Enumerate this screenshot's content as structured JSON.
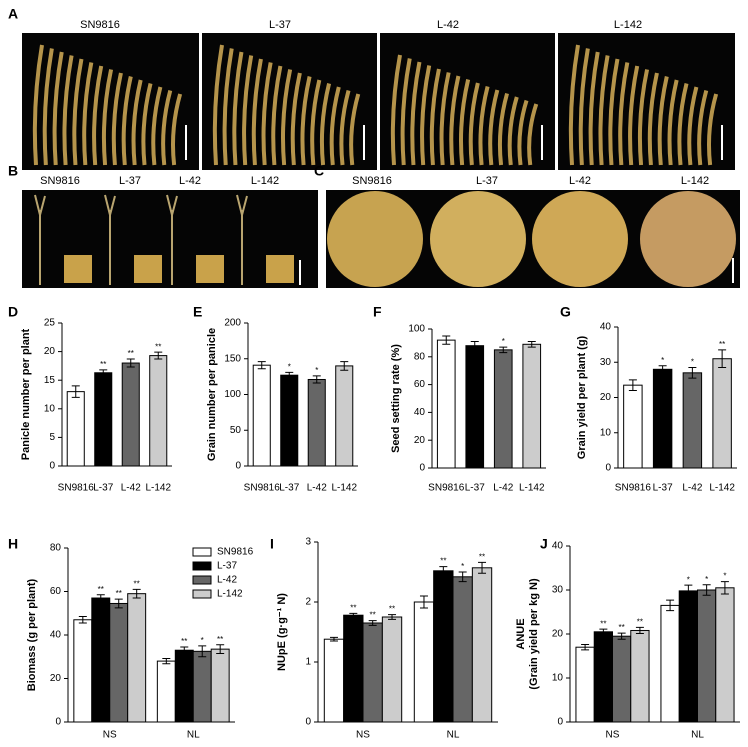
{
  "photo_panels": [
    {
      "panel": "A",
      "labels": [
        "SN9816",
        "L-37",
        "L-42",
        "L-142"
      ]
    },
    {
      "panel": "B",
      "labels": [
        "SN9816",
        "L-37",
        "L-42",
        "L-142"
      ]
    },
    {
      "panel": "C",
      "labels": [
        "SN9816",
        "L-37",
        "L-42",
        "L-142"
      ]
    }
  ],
  "chart_data": [
    {
      "type": "bar",
      "panel": "D",
      "ylabel": [
        "Panicle number per plant"
      ],
      "categories": [
        "SN9816",
        "L-37",
        "L-42",
        "L-142"
      ],
      "values": [
        13,
        16.3,
        18,
        19.3
      ],
      "errors": [
        1,
        0.5,
        0.7,
        0.6
      ],
      "annotations": [
        null,
        "**",
        "**",
        "**"
      ],
      "colors": [
        "#ffffff",
        "#000000",
        "#666666",
        "#cccccc"
      ],
      "ylim": [
        0,
        25
      ],
      "yticks": [
        0,
        5,
        10,
        15,
        20,
        25
      ]
    },
    {
      "type": "bar",
      "panel": "E",
      "ylabel": [
        "Grain number per panicle"
      ],
      "categories": [
        "SN9816",
        "L-37",
        "L-42",
        "L-142"
      ],
      "values": [
        141,
        127,
        121,
        140
      ],
      "errors": [
        5,
        4,
        5,
        6
      ],
      "annotations": [
        null,
        "*",
        "*",
        null
      ],
      "colors": [
        "#ffffff",
        "#000000",
        "#666666",
        "#cccccc"
      ],
      "ylim": [
        0,
        200
      ],
      "yticks": [
        0,
        50,
        100,
        150,
        200
      ]
    },
    {
      "type": "bar",
      "panel": "F",
      "ylabel": [
        "Seed setting rate (%)"
      ],
      "categories": [
        "SN9816",
        "L-37",
        "L-42",
        "L-142"
      ],
      "values": [
        92,
        88,
        85,
        89
      ],
      "errors": [
        3,
        3,
        2,
        2
      ],
      "annotations": [
        null,
        null,
        "*",
        null
      ],
      "colors": [
        "#ffffff",
        "#000000",
        "#666666",
        "#cccccc"
      ],
      "ylim": [
        0,
        100
      ],
      "yticks": [
        0,
        20,
        40,
        60,
        80,
        100
      ]
    },
    {
      "type": "bar",
      "panel": "G",
      "ylabel": [
        "Grain yield per plant (g)"
      ],
      "categories": [
        "SN9816",
        "L-37",
        "L-42",
        "L-142"
      ],
      "values": [
        23.5,
        28,
        27,
        31
      ],
      "errors": [
        1.5,
        1,
        1.5,
        2.5
      ],
      "annotations": [
        null,
        "*",
        "*",
        "**"
      ],
      "colors": [
        "#ffffff",
        "#000000",
        "#666666",
        "#cccccc"
      ],
      "ylim": [
        0,
        40
      ],
      "yticks": [
        0,
        10,
        20,
        30,
        40
      ]
    },
    {
      "type": "grouped_bar",
      "panel": "H",
      "ylabel": [
        "Biomass (g per plant)"
      ],
      "categories": [
        "NS",
        "NL"
      ],
      "legend": "upper right",
      "series": [
        {
          "name": "SN9816",
          "color": "#ffffff",
          "values": [
            47,
            28
          ],
          "errors": [
            1.5,
            1.2
          ],
          "annotations": [
            null,
            null
          ]
        },
        {
          "name": "L-37",
          "color": "#000000",
          "values": [
            57,
            33
          ],
          "errors": [
            1.5,
            1.5
          ],
          "annotations": [
            "**",
            "**"
          ]
        },
        {
          "name": "L-42",
          "color": "#666666",
          "values": [
            54.5,
            32.5
          ],
          "errors": [
            2,
            2.5
          ],
          "annotations": [
            "**",
            "*"
          ]
        },
        {
          "name": "L-142",
          "color": "#cccccc",
          "values": [
            59,
            33.5
          ],
          "errors": [
            2,
            2
          ],
          "annotations": [
            "**",
            "**"
          ]
        }
      ],
      "ylim": [
        0,
        80
      ],
      "yticks": [
        0,
        20,
        40,
        60,
        80
      ]
    },
    {
      "type": "grouped_bar",
      "panel": "I",
      "ylabel": [
        "NUpE (g·g⁻¹ N)"
      ],
      "categories": [
        "NS",
        "NL"
      ],
      "series": [
        {
          "color": "#ffffff",
          "values": [
            1.38,
            2.0
          ],
          "errors": [
            0.03,
            0.1
          ],
          "annotations": [
            null,
            null
          ]
        },
        {
          "color": "#000000",
          "values": [
            1.78,
            2.52
          ],
          "errors": [
            0.03,
            0.07
          ],
          "annotations": [
            "**",
            "**"
          ]
        },
        {
          "color": "#666666",
          "values": [
            1.65,
            2.42
          ],
          "errors": [
            0.04,
            0.08
          ],
          "annotations": [
            "**",
            "*"
          ]
        },
        {
          "color": "#cccccc",
          "values": [
            1.75,
            2.57
          ],
          "errors": [
            0.04,
            0.09
          ],
          "annotations": [
            "**",
            "**"
          ]
        }
      ],
      "ylim": [
        0,
        3
      ],
      "yticks": [
        0,
        1,
        2,
        3
      ]
    },
    {
      "type": "grouped_bar",
      "panel": "J",
      "ylabel": [
        "ANUE",
        "(Grain yield per kg N)"
      ],
      "categories": [
        "NS",
        "NL"
      ],
      "series": [
        {
          "color": "#ffffff",
          "values": [
            17,
            26.5
          ],
          "errors": [
            0.6,
            1.2
          ],
          "annotations": [
            null,
            null
          ]
        },
        {
          "color": "#000000",
          "values": [
            20.5,
            29.8
          ],
          "errors": [
            0.6,
            1.3
          ],
          "annotations": [
            "**",
            "*"
          ]
        },
        {
          "color": "#666666",
          "values": [
            19.5,
            30
          ],
          "errors": [
            0.7,
            1.2
          ],
          "annotations": [
            "**",
            "*"
          ]
        },
        {
          "color": "#cccccc",
          "values": [
            20.8,
            30.5
          ],
          "errors": [
            0.7,
            1.4
          ],
          "annotations": [
            "**",
            "*"
          ]
        }
      ],
      "ylim": [
        0,
        40
      ],
      "yticks": [
        0,
        10,
        20,
        30,
        40
      ]
    }
  ]
}
